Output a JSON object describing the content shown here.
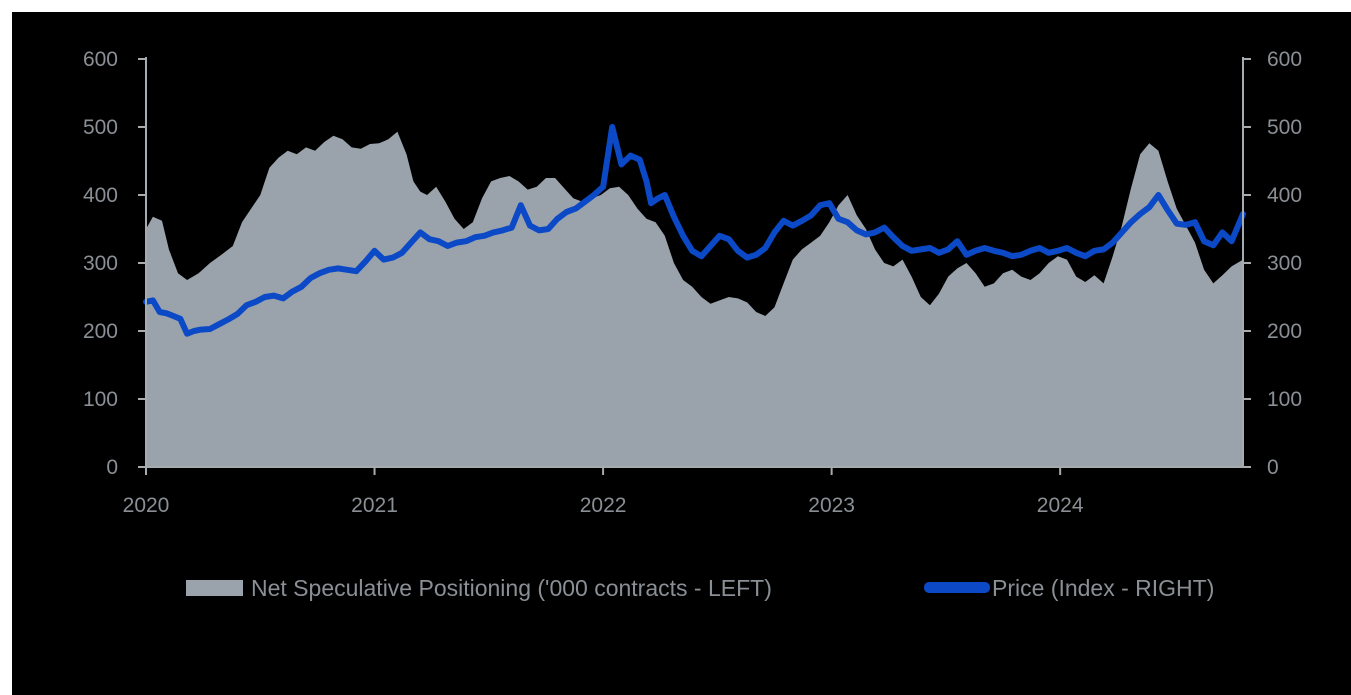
{
  "chart_data": {
    "type": "area",
    "x_axis": {
      "ticks": [
        "2020",
        "2021",
        "2022",
        "2023",
        "2024"
      ],
      "start": 2020.0,
      "end": 2024.8
    },
    "y_left": {
      "ticks": [
        "0",
        "100",
        "200",
        "300",
        "400",
        "500",
        "600"
      ],
      "min": 0,
      "max": 600
    },
    "y_right": {
      "ticks": [
        "0",
        "100",
        "200",
        "300",
        "400",
        "500",
        "600"
      ],
      "min": 0,
      "max": 600
    },
    "grid": false,
    "legend_position": "bottom",
    "series": [
      {
        "name": "Net Speculative Positioning ('000 contracts - LEFT)",
        "kind": "area",
        "axis": "left",
        "color": "#9aa3ab",
        "x": [
          2020.0,
          2020.03,
          2020.07,
          2020.1,
          2020.14,
          2020.18,
          2020.23,
          2020.28,
          2020.33,
          2020.38,
          2020.42,
          2020.46,
          2020.5,
          2020.54,
          2020.58,
          2020.62,
          2020.66,
          2020.7,
          2020.74,
          2020.78,
          2020.82,
          2020.86,
          2020.9,
          2020.94,
          2020.98,
          2021.02,
          2021.06,
          2021.1,
          2021.14,
          2021.17,
          2021.2,
          2021.23,
          2021.27,
          2021.31,
          2021.35,
          2021.39,
          2021.43,
          2021.47,
          2021.51,
          2021.55,
          2021.59,
          2021.63,
          2021.67,
          2021.71,
          2021.75,
          2021.79,
          2021.83,
          2021.87,
          2021.91,
          2021.95,
          2021.99,
          2022.03,
          2022.07,
          2022.11,
          2022.15,
          2022.19,
          2022.23,
          2022.27,
          2022.31,
          2022.35,
          2022.39,
          2022.43,
          2022.47,
          2022.51,
          2022.55,
          2022.59,
          2022.63,
          2022.67,
          2022.71,
          2022.75,
          2022.79,
          2022.83,
          2022.87,
          2022.91,
          2022.95,
          2022.99,
          2023.03,
          2023.07,
          2023.11,
          2023.15,
          2023.19,
          2023.23,
          2023.27,
          2023.31,
          2023.35,
          2023.39,
          2023.43,
          2023.47,
          2023.51,
          2023.55,
          2023.59,
          2023.63,
          2023.67,
          2023.71,
          2023.75,
          2023.79,
          2023.83,
          2023.87,
          2023.91,
          2023.95,
          2023.99,
          2024.03,
          2024.07,
          2024.11,
          2024.15,
          2024.19,
          2024.23,
          2024.27,
          2024.31,
          2024.35,
          2024.39,
          2024.43,
          2024.47,
          2024.51,
          2024.55,
          2024.59,
          2024.63,
          2024.67,
          2024.71,
          2024.75,
          2024.8
        ],
        "y": [
          350,
          368,
          362,
          320,
          285,
          275,
          285,
          300,
          312,
          325,
          360,
          380,
          400,
          440,
          455,
          465,
          460,
          470,
          465,
          478,
          487,
          482,
          470,
          468,
          475,
          476,
          482,
          493,
          460,
          420,
          405,
          400,
          412,
          390,
          365,
          350,
          360,
          395,
          420,
          425,
          428,
          420,
          408,
          412,
          425,
          425,
          410,
          395,
          390,
          395,
          400,
          410,
          412,
          400,
          380,
          365,
          360,
          340,
          300,
          275,
          265,
          250,
          240,
          245,
          250,
          248,
          242,
          228,
          222,
          235,
          270,
          305,
          320,
          330,
          340,
          360,
          385,
          400,
          370,
          350,
          320,
          300,
          295,
          305,
          280,
          250,
          238,
          255,
          280,
          292,
          300,
          285,
          265,
          270,
          285,
          290,
          280,
          275,
          285,
          300,
          310,
          305,
          280,
          272,
          282,
          270,
          310,
          355,
          410,
          460,
          476,
          465,
          420,
          380,
          355,
          330,
          290,
          270,
          282,
          295,
          305
        ]
      },
      {
        "name": "Price (Index - RIGHT)",
        "kind": "line",
        "axis": "right",
        "color": "#0b49c7",
        "x": [
          2020.0,
          2020.03,
          2020.06,
          2020.09,
          2020.12,
          2020.15,
          2020.18,
          2020.21,
          2020.24,
          2020.28,
          2020.32,
          2020.36,
          2020.4,
          2020.44,
          2020.48,
          2020.52,
          2020.56,
          2020.6,
          2020.64,
          2020.68,
          2020.72,
          2020.76,
          2020.8,
          2020.84,
          2020.88,
          2020.92,
          2020.96,
          2021.0,
          2021.04,
          2021.08,
          2021.12,
          2021.16,
          2021.2,
          2021.24,
          2021.28,
          2021.32,
          2021.36,
          2021.4,
          2021.44,
          2021.48,
          2021.52,
          2021.56,
          2021.6,
          2021.64,
          2021.68,
          2021.72,
          2021.76,
          2021.8,
          2021.84,
          2021.88,
          2021.92,
          2021.96,
          2022.0,
          2022.04,
          2022.08,
          2022.12,
          2022.16,
          2022.19,
          2022.21,
          2022.24,
          2022.27,
          2022.31,
          2022.35,
          2022.39,
          2022.43,
          2022.47,
          2022.51,
          2022.55,
          2022.59,
          2022.63,
          2022.67,
          2022.71,
          2022.75,
          2022.79,
          2022.83,
          2022.87,
          2022.91,
          2022.95,
          2022.99,
          2023.03,
          2023.07,
          2023.11,
          2023.15,
          2023.19,
          2023.23,
          2023.27,
          2023.31,
          2023.35,
          2023.39,
          2023.43,
          2023.47,
          2023.51,
          2023.55,
          2023.59,
          2023.63,
          2023.67,
          2023.71,
          2023.75,
          2023.79,
          2023.83,
          2023.87,
          2023.91,
          2023.95,
          2023.99,
          2024.03,
          2024.07,
          2024.11,
          2024.15,
          2024.19,
          2024.23,
          2024.27,
          2024.31,
          2024.35,
          2024.39,
          2024.43,
          2024.47,
          2024.51,
          2024.55,
          2024.59,
          2024.63,
          2024.67,
          2024.71,
          2024.75,
          2024.8
        ],
        "y": [
          243,
          245,
          228,
          226,
          222,
          218,
          196,
          200,
          202,
          203,
          210,
          217,
          225,
          238,
          243,
          250,
          252,
          248,
          258,
          265,
          278,
          285,
          290,
          292,
          290,
          288,
          302,
          318,
          305,
          308,
          315,
          330,
          345,
          335,
          332,
          325,
          330,
          332,
          338,
          340,
          345,
          348,
          352,
          385,
          355,
          348,
          350,
          365,
          375,
          380,
          390,
          400,
          412,
          500,
          445,
          458,
          452,
          420,
          388,
          395,
          400,
          368,
          340,
          318,
          310,
          325,
          340,
          335,
          318,
          308,
          312,
          322,
          345,
          362,
          355,
          362,
          370,
          385,
          388,
          365,
          360,
          348,
          342,
          345,
          352,
          338,
          325,
          318,
          320,
          322,
          315,
          320,
          332,
          312,
          318,
          322,
          318,
          315,
          310,
          312,
          318,
          322,
          315,
          318,
          322,
          315,
          310,
          318,
          320,
          330,
          345,
          360,
          372,
          382,
          400,
          378,
          358,
          356,
          360,
          332,
          326,
          345,
          332,
          372
        ]
      }
    ]
  },
  "legend": {
    "items": [
      {
        "label": "Net Speculative Positioning ('000 contracts - LEFT)",
        "color": "#9aa3ab"
      },
      {
        "label": "Price (Index - RIGHT)",
        "color": "#0b49c7"
      }
    ]
  }
}
